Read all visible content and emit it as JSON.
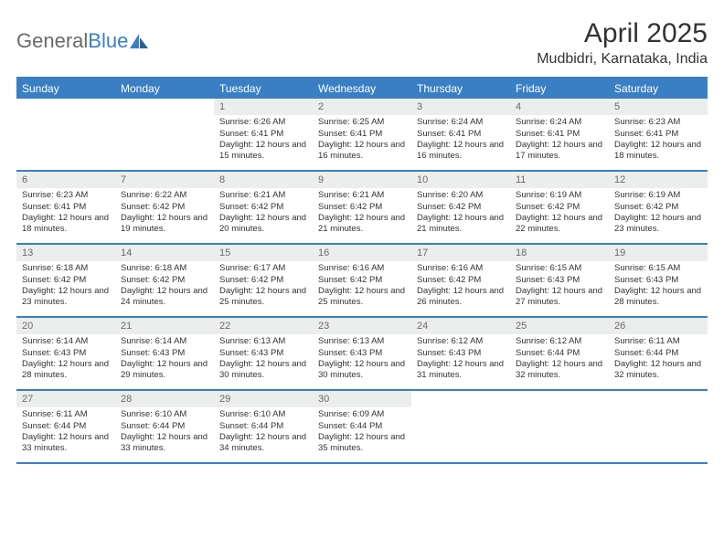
{
  "logo": {
    "text1": "General",
    "text2": "Blue"
  },
  "title": "April 2025",
  "location": "Mudbidri, Karnataka, India",
  "day_names": [
    "Sunday",
    "Monday",
    "Tuesday",
    "Wednesday",
    "Thursday",
    "Friday",
    "Saturday"
  ],
  "colors": {
    "accent": "#3a7fc4",
    "header_text": "#ffffff",
    "daynum_bg": "#eceded",
    "daynum_text": "#6a6a6a",
    "body_text": "#333333",
    "logo_gray": "#6a6a6a"
  },
  "layout": {
    "columns": 7,
    "week_rows": 5,
    "cell_fontsize": 9.5,
    "header_fontsize": 12,
    "title_fontsize": 30,
    "location_fontsize": 16
  },
  "first_blank_cells": 2,
  "days": [
    {
      "n": "1",
      "sr": "6:26 AM",
      "ss": "6:41 PM",
      "dl": "12 hours and 15 minutes."
    },
    {
      "n": "2",
      "sr": "6:25 AM",
      "ss": "6:41 PM",
      "dl": "12 hours and 16 minutes."
    },
    {
      "n": "3",
      "sr": "6:24 AM",
      "ss": "6:41 PM",
      "dl": "12 hours and 16 minutes."
    },
    {
      "n": "4",
      "sr": "6:24 AM",
      "ss": "6:41 PM",
      "dl": "12 hours and 17 minutes."
    },
    {
      "n": "5",
      "sr": "6:23 AM",
      "ss": "6:41 PM",
      "dl": "12 hours and 18 minutes."
    },
    {
      "n": "6",
      "sr": "6:23 AM",
      "ss": "6:41 PM",
      "dl": "12 hours and 18 minutes."
    },
    {
      "n": "7",
      "sr": "6:22 AM",
      "ss": "6:42 PM",
      "dl": "12 hours and 19 minutes."
    },
    {
      "n": "8",
      "sr": "6:21 AM",
      "ss": "6:42 PM",
      "dl": "12 hours and 20 minutes."
    },
    {
      "n": "9",
      "sr": "6:21 AM",
      "ss": "6:42 PM",
      "dl": "12 hours and 21 minutes."
    },
    {
      "n": "10",
      "sr": "6:20 AM",
      "ss": "6:42 PM",
      "dl": "12 hours and 21 minutes."
    },
    {
      "n": "11",
      "sr": "6:19 AM",
      "ss": "6:42 PM",
      "dl": "12 hours and 22 minutes."
    },
    {
      "n": "12",
      "sr": "6:19 AM",
      "ss": "6:42 PM",
      "dl": "12 hours and 23 minutes."
    },
    {
      "n": "13",
      "sr": "6:18 AM",
      "ss": "6:42 PM",
      "dl": "12 hours and 23 minutes."
    },
    {
      "n": "14",
      "sr": "6:18 AM",
      "ss": "6:42 PM",
      "dl": "12 hours and 24 minutes."
    },
    {
      "n": "15",
      "sr": "6:17 AM",
      "ss": "6:42 PM",
      "dl": "12 hours and 25 minutes."
    },
    {
      "n": "16",
      "sr": "6:16 AM",
      "ss": "6:42 PM",
      "dl": "12 hours and 25 minutes."
    },
    {
      "n": "17",
      "sr": "6:16 AM",
      "ss": "6:42 PM",
      "dl": "12 hours and 26 minutes."
    },
    {
      "n": "18",
      "sr": "6:15 AM",
      "ss": "6:43 PM",
      "dl": "12 hours and 27 minutes."
    },
    {
      "n": "19",
      "sr": "6:15 AM",
      "ss": "6:43 PM",
      "dl": "12 hours and 28 minutes."
    },
    {
      "n": "20",
      "sr": "6:14 AM",
      "ss": "6:43 PM",
      "dl": "12 hours and 28 minutes."
    },
    {
      "n": "21",
      "sr": "6:14 AM",
      "ss": "6:43 PM",
      "dl": "12 hours and 29 minutes."
    },
    {
      "n": "22",
      "sr": "6:13 AM",
      "ss": "6:43 PM",
      "dl": "12 hours and 30 minutes."
    },
    {
      "n": "23",
      "sr": "6:13 AM",
      "ss": "6:43 PM",
      "dl": "12 hours and 30 minutes."
    },
    {
      "n": "24",
      "sr": "6:12 AM",
      "ss": "6:43 PM",
      "dl": "12 hours and 31 minutes."
    },
    {
      "n": "25",
      "sr": "6:12 AM",
      "ss": "6:44 PM",
      "dl": "12 hours and 32 minutes."
    },
    {
      "n": "26",
      "sr": "6:11 AM",
      "ss": "6:44 PM",
      "dl": "12 hours and 32 minutes."
    },
    {
      "n": "27",
      "sr": "6:11 AM",
      "ss": "6:44 PM",
      "dl": "12 hours and 33 minutes."
    },
    {
      "n": "28",
      "sr": "6:10 AM",
      "ss": "6:44 PM",
      "dl": "12 hours and 33 minutes."
    },
    {
      "n": "29",
      "sr": "6:10 AM",
      "ss": "6:44 PM",
      "dl": "12 hours and 34 minutes."
    },
    {
      "n": "30",
      "sr": "6:09 AM",
      "ss": "6:44 PM",
      "dl": "12 hours and 35 minutes."
    }
  ],
  "labels": {
    "sunrise": "Sunrise: ",
    "sunset": "Sunset: ",
    "daylight": "Daylight: "
  }
}
